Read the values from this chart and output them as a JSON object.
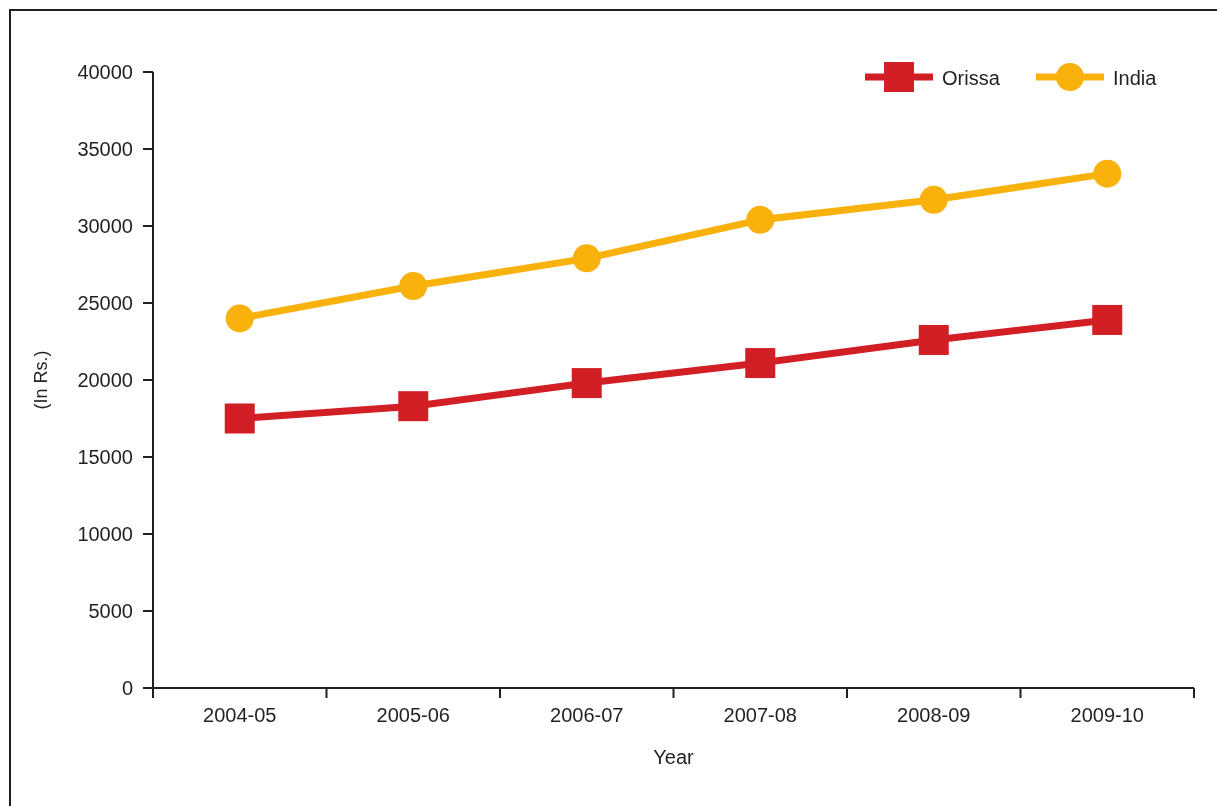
{
  "chart_data": {
    "type": "line",
    "xlabel": "Year",
    "ylabel": "(In Rs.)",
    "categories": [
      "2004-05",
      "2005-06",
      "2006-07",
      "2007-08",
      "2008-09",
      "2009-10"
    ],
    "series": [
      {
        "name": "Orissa",
        "color": "#d21f26",
        "marker": "square",
        "values": [
          17500,
          18300,
          19800,
          21100,
          22600,
          23900
        ]
      },
      {
        "name": "India",
        "color": "#f9b10b",
        "marker": "circle",
        "values": [
          24000,
          26100,
          27900,
          30400,
          31700,
          33400
        ]
      }
    ],
    "ylim": [
      0,
      40000
    ],
    "yticks": [
      0,
      5000,
      10000,
      15000,
      20000,
      25000,
      30000,
      35000,
      40000
    ],
    "legend": "top right"
  }
}
